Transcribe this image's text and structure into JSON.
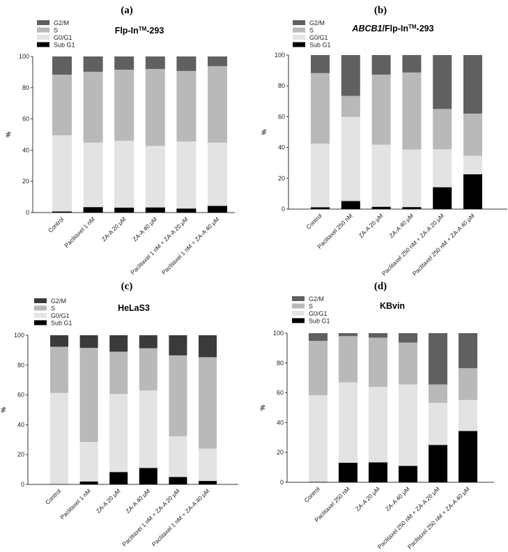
{
  "figure": {
    "panels": [
      {
        "label": "(a)",
        "title_parts": [
          {
            "text": "Flp-In",
            "style": "normal"
          },
          {
            "text": "TM",
            "style": "sup"
          },
          {
            "text": "-293",
            "style": "normal"
          }
        ],
        "ylabel": "%",
        "g2m_color": "#606060"
      },
      {
        "label": "(b)",
        "title_parts": [
          {
            "text": "ABCB1",
            "style": "italic"
          },
          {
            "text": "/Flp-In",
            "style": "normal"
          },
          {
            "text": "TM",
            "style": "sup"
          },
          {
            "text": "-293",
            "style": "normal"
          }
        ],
        "ylabel": "%",
        "g2m_color": "#606060"
      },
      {
        "label": "(c)",
        "title_parts": [
          {
            "text": "HeLaS3",
            "style": "normal"
          }
        ],
        "ylabel": "%",
        "g2m_color": "#3a3a3a"
      },
      {
        "label": "(d)",
        "title_parts": [
          {
            "text": "KBvin",
            "style": "normal"
          }
        ],
        "ylabel": "%",
        "g2m_color": "#606060"
      }
    ]
  },
  "chart_data": [
    {
      "type": "bar",
      "stacked": true,
      "title": "Flp-In™-293",
      "ylabel": "%",
      "ylim": [
        0,
        100
      ],
      "yticks": [
        "0",
        "20",
        "40",
        "60",
        "80",
        "100"
      ],
      "legend_position": "top-left",
      "categories": [
        "Control",
        "Paclitaxel 1 nM",
        "ZA-A 20 μM",
        "ZA-A 40 μM",
        "Paclitaxel 1 nM + ZA-A 20 μM",
        "Paclitaxel 1 nM + ZA-A 40 μM"
      ],
      "series": [
        {
          "name": "Sub G1",
          "color": "#000000",
          "values": [
            0.7,
            3.5,
            3.2,
            3.3,
            2.6,
            4.3
          ]
        },
        {
          "name": "G0/G1",
          "color": "#e3e3e3",
          "values": [
            48.8,
            41.3,
            42.8,
            39.4,
            42.9,
            40.5
          ]
        },
        {
          "name": "S",
          "color": "#b9b9b9",
          "values": [
            38.8,
            45.4,
            45.5,
            49.3,
            45.2,
            49.0
          ]
        },
        {
          "name": "G2/M",
          "color": "#606060",
          "values": [
            11.7,
            9.8,
            8.5,
            8.0,
            9.3,
            6.2
          ]
        }
      ]
    },
    {
      "type": "bar",
      "stacked": true,
      "title": "ABCB1/Flp-In™-293",
      "ylabel": "%",
      "ylim": [
        0,
        100
      ],
      "yticks": [
        "0",
        "20",
        "40",
        "60",
        "80",
        "100"
      ],
      "legend_position": "top-left",
      "categories": [
        "Control",
        "Paclitaxel 250 nM",
        "ZA-A 20 μM",
        "ZA-A 40 μM",
        "Paclitaxel 250 nM + ZA-A 20 μM",
        "Paclitaxel 250 nM + ZA-A 40 μM"
      ],
      "series": [
        {
          "name": "Sub G1",
          "color": "#000000",
          "values": [
            1.2,
            5.2,
            1.5,
            1.3,
            14.2,
            22.6
          ]
        },
        {
          "name": "G0/G1",
          "color": "#e3e3e3",
          "values": [
            41.3,
            54.6,
            40.3,
            37.4,
            24.6,
            12.0
          ]
        },
        {
          "name": "S",
          "color": "#b9b9b9",
          "values": [
            45.8,
            13.7,
            45.5,
            50.0,
            26.2,
            27.4
          ]
        },
        {
          "name": "G2/M",
          "color": "#606060",
          "values": [
            11.7,
            26.5,
            12.7,
            11.3,
            35.0,
            38.0
          ]
        }
      ]
    },
    {
      "type": "bar",
      "stacked": true,
      "title": "HeLaS3",
      "ylabel": "%",
      "ylim": [
        0,
        100
      ],
      "yticks": [
        "0",
        "20",
        "40",
        "60",
        "80",
        "100"
      ],
      "legend_position": "top-left",
      "categories": [
        "Control",
        "Paclitaxel 1 nM",
        "ZA-A 20 μM",
        "ZA-A 40 μM",
        "Paclitaxel 1 nM + ZA-A 20 μM",
        "Paclitaxel 1 nM + ZA-A 40 μM"
      ],
      "series": [
        {
          "name": "Sub G1",
          "color": "#000000",
          "values": [
            0.2,
            2.0,
            8.3,
            11.0,
            5.0,
            2.3
          ]
        },
        {
          "name": "G0/G1",
          "color": "#e3e3e3",
          "values": [
            61.1,
            26.5,
            52.3,
            52.0,
            27.3,
            21.7
          ]
        },
        {
          "name": "S",
          "color": "#b9b9b9",
          "values": [
            31.0,
            63.0,
            28.4,
            28.3,
            54.2,
            61.3
          ]
        },
        {
          "name": "G2/M",
          "color": "#3a3a3a",
          "values": [
            7.7,
            8.5,
            11.0,
            8.7,
            13.5,
            14.7
          ]
        }
      ]
    },
    {
      "type": "bar",
      "stacked": true,
      "title": "KBvin",
      "ylabel": "%",
      "ylim": [
        0,
        100
      ],
      "yticks": [
        "0",
        "20",
        "40",
        "60",
        "80",
        "100"
      ],
      "legend_position": "top-left",
      "categories": [
        "Control",
        "Paclitaxel 250 nM",
        "ZA-A 20 μM",
        "ZA-A 40 μM",
        "Paclitaxel 250 nM + ZA-A 20 μM",
        "Paclitaxel 250 nM + ZA-A 40 μM"
      ],
      "series": [
        {
          "name": "Sub G1",
          "color": "#000000",
          "values": [
            0.3,
            13.1,
            13.4,
            11.0,
            25.0,
            34.4
          ]
        },
        {
          "name": "G0/G1",
          "color": "#e3e3e3",
          "values": [
            58.0,
            53.9,
            50.6,
            54.6,
            28.3,
            20.8
          ]
        },
        {
          "name": "S",
          "color": "#b9b9b9",
          "values": [
            36.5,
            31.0,
            33.0,
            28.1,
            12.3,
            21.3
          ]
        },
        {
          "name": "G2/M",
          "color": "#606060",
          "values": [
            5.2,
            2.0,
            3.0,
            6.3,
            34.4,
            23.5
          ]
        }
      ]
    }
  ]
}
